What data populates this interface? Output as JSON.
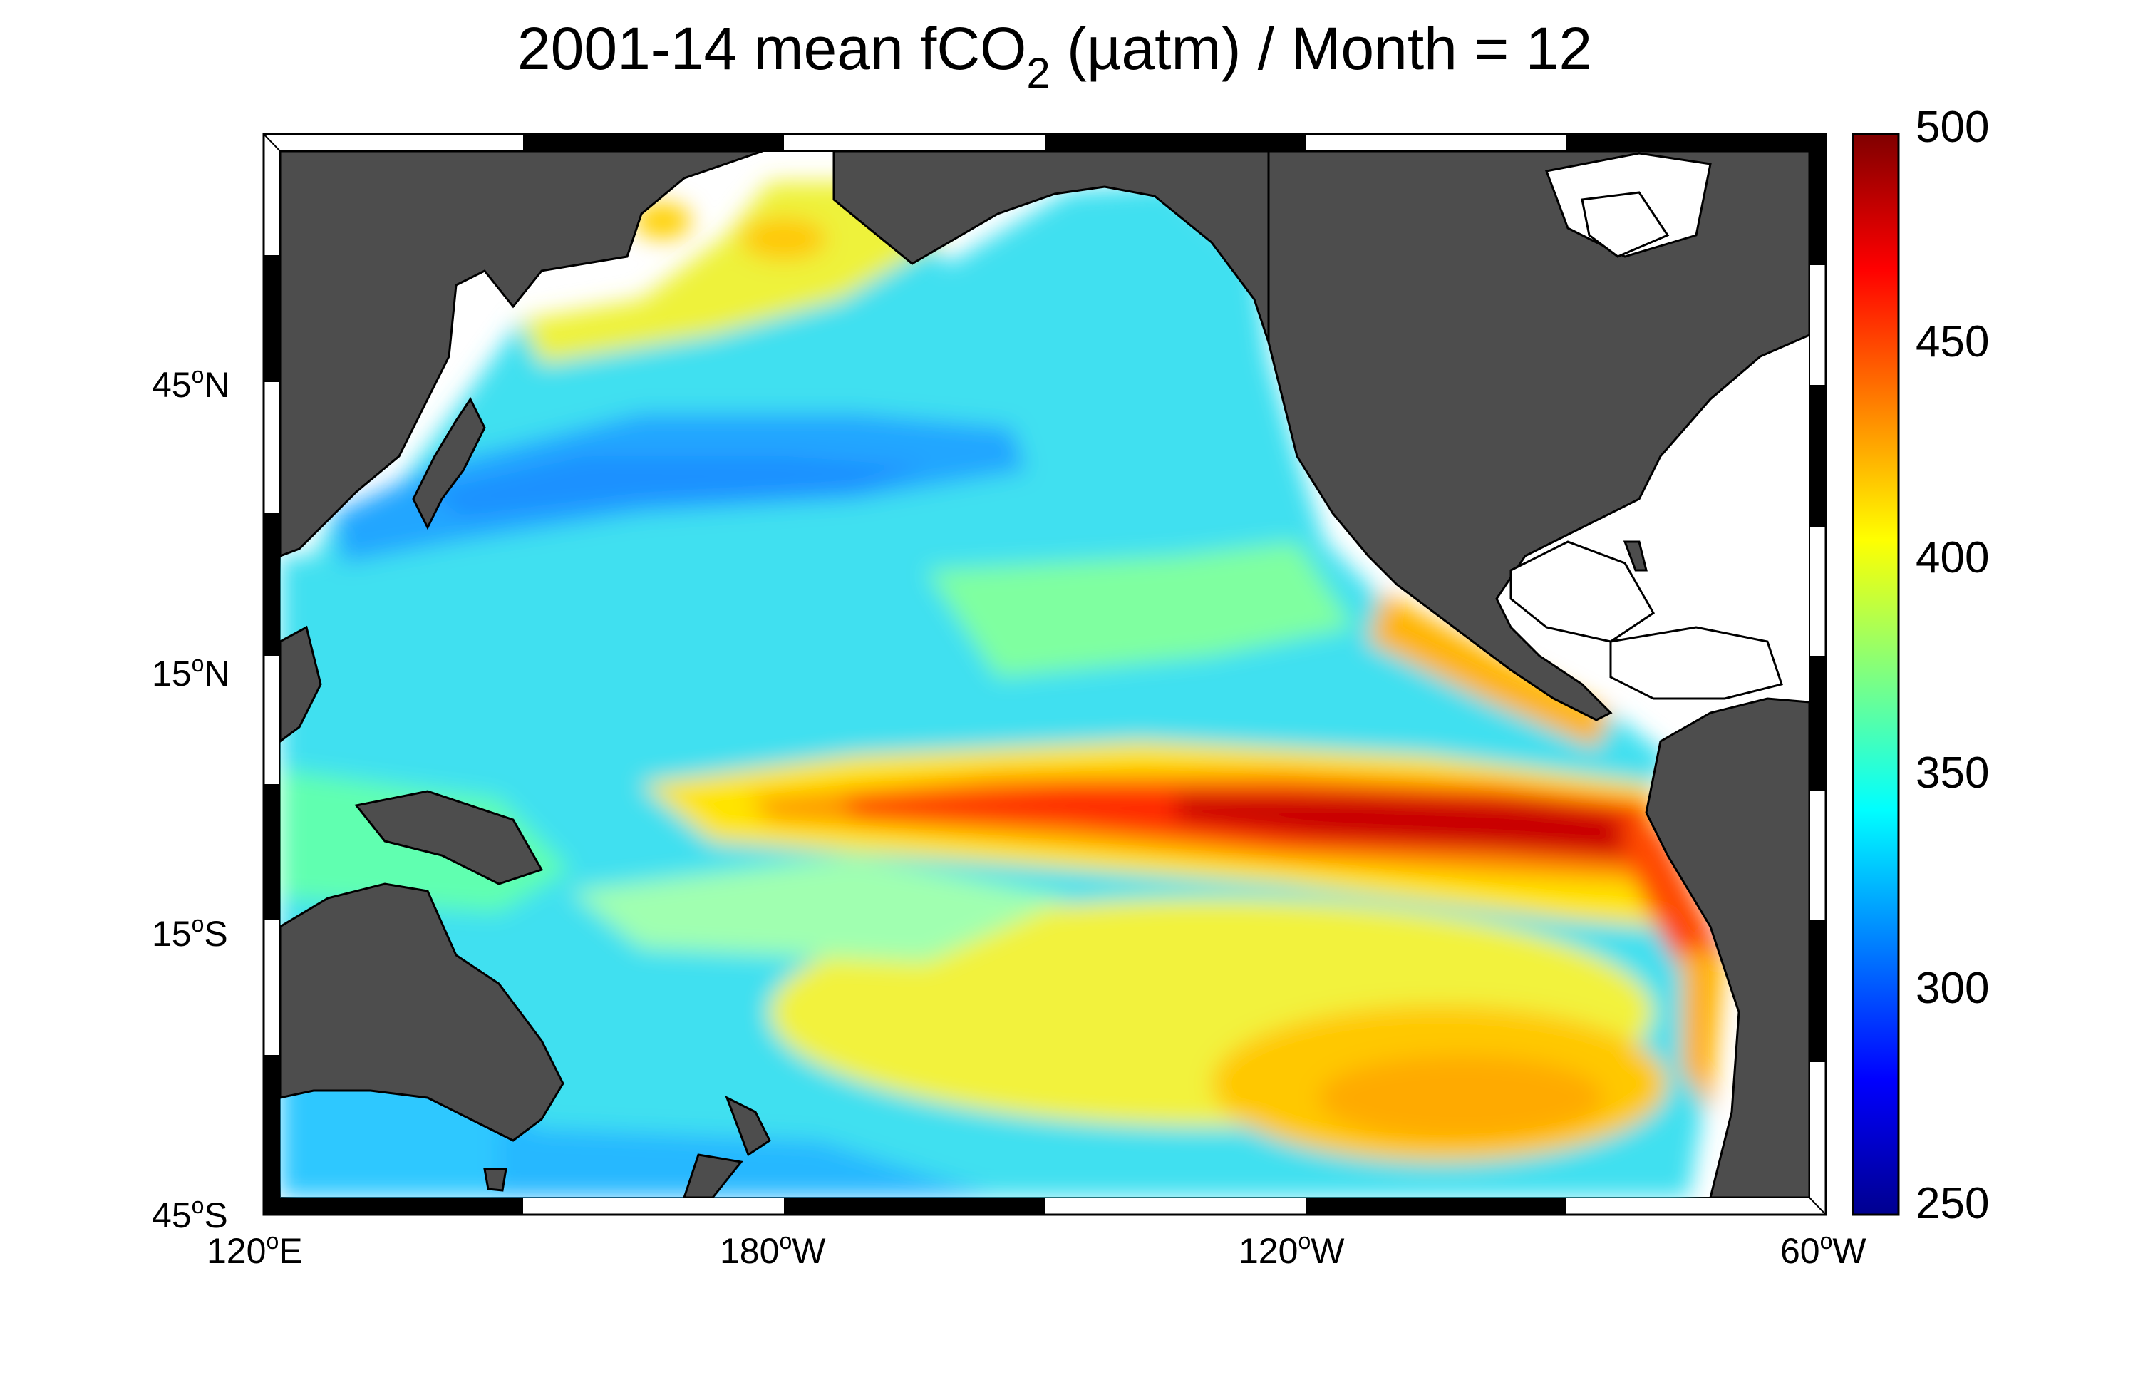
{
  "title": {
    "before_sub": "2001-14 mean fCO",
    "sub": "2",
    "after_sub": " (µatm) / Month = 12"
  },
  "map": {
    "projection": "equirectangular",
    "lon_range": [
      "120°E",
      "60°W"
    ],
    "lat_range": [
      "45°S",
      "63°N"
    ],
    "land_color": "#4d4d4d",
    "no_data_color": "#ffffff",
    "lat_ticks": [
      {
        "deg": "45",
        "hemi": "N"
      },
      {
        "deg": "15",
        "hemi": "N"
      },
      {
        "deg": "15",
        "hemi": "S"
      },
      {
        "deg": "45",
        "hemi": "S"
      }
    ],
    "lon_ticks": [
      {
        "deg": "120",
        "hemi": "E"
      },
      {
        "deg": "180",
        "hemi": "W"
      },
      {
        "deg": "120",
        "hemi": "W"
      },
      {
        "deg": "60",
        "hemi": "W"
      }
    ]
  },
  "colorbar": {
    "colormap": "jet",
    "min": 250,
    "max": 500,
    "ticks": [
      "500",
      "450",
      "400",
      "350",
      "300",
      "250"
    ]
  },
  "chart_data": {
    "type": "heatmap",
    "variable": "fCO2",
    "units": "µatm",
    "month": 12,
    "period": "2001-14",
    "value_range": [
      250,
      500
    ],
    "features": [
      {
        "region": "equatorial Pacific upwelling band (170°W–80°W, 5°S–5°N)",
        "value": 470
      },
      {
        "region": "eastern equatorial Pacific core near 95°W",
        "value": 490
      },
      {
        "region": "Peru/Chile coastal upwelling",
        "value": 450
      },
      {
        "region": "Gulf of Panama / Central America coast",
        "value": 430
      },
      {
        "region": "subtropical South Pacific band 10–30°S",
        "value": 380
      },
      {
        "region": "South Pacific 30–40°S, 120°W–90°W",
        "value": 420
      },
      {
        "region": "North Pacific subpolar (Bering/Okhotsk)",
        "value": 400
      },
      {
        "region": "Kuroshio extension 30–40°N",
        "value": 315
      },
      {
        "region": "open subtropical North Pacific",
        "value": 350
      },
      {
        "region": "Tasman Sea / south of Australia",
        "value": 335
      },
      {
        "region": "western equatorial warm pool",
        "value": 355
      }
    ]
  }
}
